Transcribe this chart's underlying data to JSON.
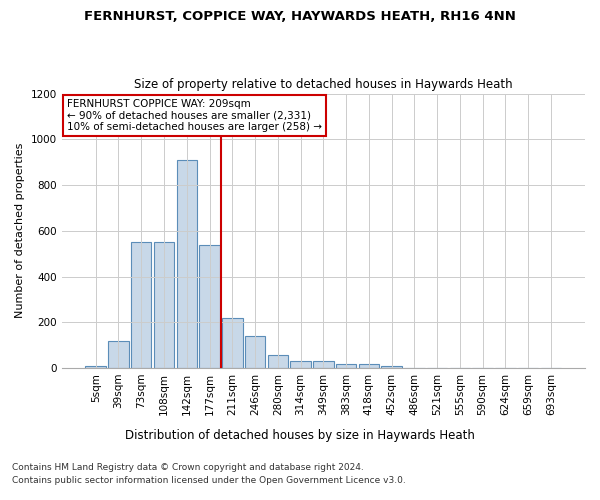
{
  "title": "FERNHURST, COPPICE WAY, HAYWARDS HEATH, RH16 4NN",
  "subtitle": "Size of property relative to detached houses in Haywards Heath",
  "xlabel": "Distribution of detached houses by size in Haywards Heath",
  "ylabel": "Number of detached properties",
  "footer_line1": "Contains HM Land Registry data © Crown copyright and database right 2024.",
  "footer_line2": "Contains public sector information licensed under the Open Government Licence v3.0.",
  "bar_labels": [
    "5sqm",
    "39sqm",
    "73sqm",
    "108sqm",
    "142sqm",
    "177sqm",
    "211sqm",
    "246sqm",
    "280sqm",
    "314sqm",
    "349sqm",
    "383sqm",
    "418sqm",
    "452sqm",
    "486sqm",
    "521sqm",
    "555sqm",
    "590sqm",
    "624sqm",
    "659sqm",
    "693sqm"
  ],
  "bar_values": [
    8,
    120,
    550,
    550,
    910,
    540,
    220,
    140,
    55,
    32,
    30,
    18,
    18,
    8,
    0,
    0,
    0,
    0,
    0,
    0,
    0
  ],
  "bar_color": "#c8d8e8",
  "bar_edge_color": "#5b8db8",
  "vline_index": 6,
  "vline_color": "#cc0000",
  "ylim": [
    0,
    1200
  ],
  "yticks": [
    0,
    200,
    400,
    600,
    800,
    1000,
    1200
  ],
  "annotation_text": "FERNHURST COPPICE WAY: 209sqm\n← 90% of detached houses are smaller (2,331)\n10% of semi-detached houses are larger (258) →",
  "annotation_box_color": "#ffffff",
  "annotation_box_edge": "#cc0000",
  "grid_color": "#cccccc",
  "bg_color": "#ffffff",
  "title_fontsize": 9.5,
  "subtitle_fontsize": 8.5
}
